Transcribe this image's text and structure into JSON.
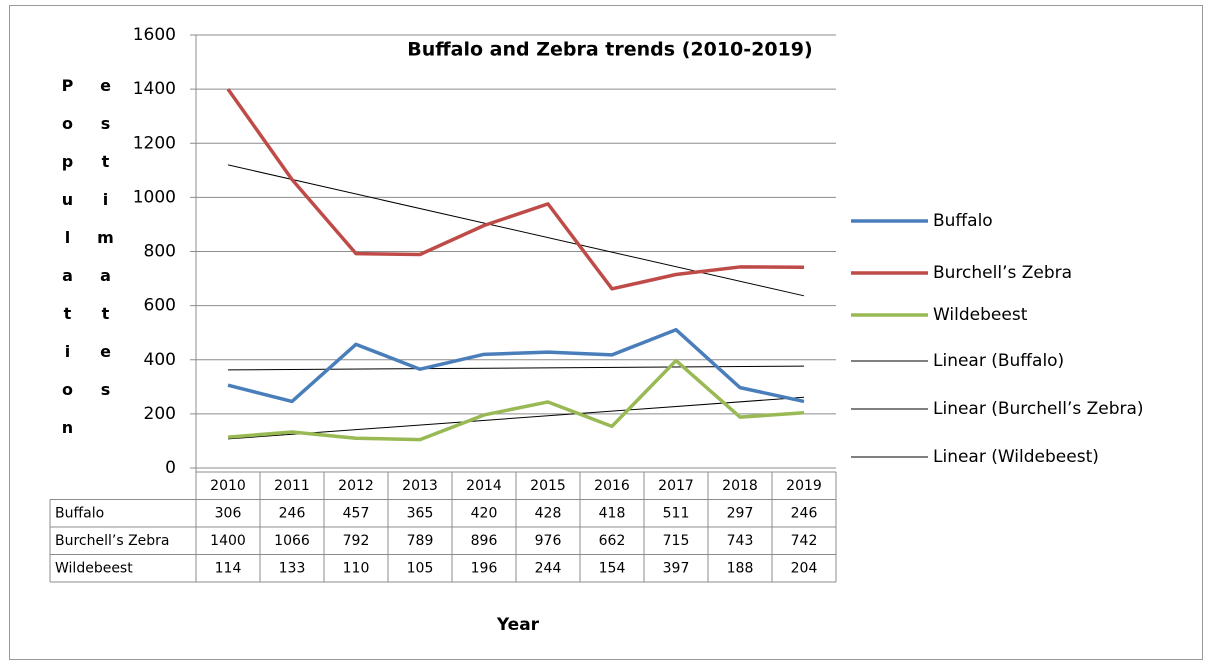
{
  "chart_data": {
    "type": "line",
    "title": "Buffalo and Zebra trends (2010-2019)",
    "x_label": "Year",
    "y_label": "Population estimates",
    "categories": [
      "2010",
      "2011",
      "2012",
      "2013",
      "2014",
      "2015",
      "2016",
      "2017",
      "2018",
      "2019"
    ],
    "series": [
      {
        "name": "Buffalo",
        "color": "#4a7ebb",
        "trendline": "Linear (Buffalo)",
        "values": [
          306,
          246,
          457,
          365,
          420,
          428,
          418,
          511,
          297,
          246
        ]
      },
      {
        "name": "Burchell’s Zebra",
        "color": "#be4b48",
        "trendline": "Linear (Burchell’s Zebra)",
        "values": [
          1400,
          1066,
          792,
          789,
          896,
          976,
          662,
          715,
          743,
          742
        ]
      },
      {
        "name": "Wildebeest",
        "color": "#98b954",
        "trendline": "Linear (Wildebeest)",
        "values": [
          114,
          133,
          110,
          105,
          196,
          244,
          154,
          397,
          188,
          204
        ]
      }
    ],
    "ylim": [
      0,
      1600
    ],
    "yticks": [
      0,
      200,
      400,
      600,
      800,
      1000,
      1200,
      1400,
      1600
    ],
    "grid": true,
    "legend": "right"
  }
}
